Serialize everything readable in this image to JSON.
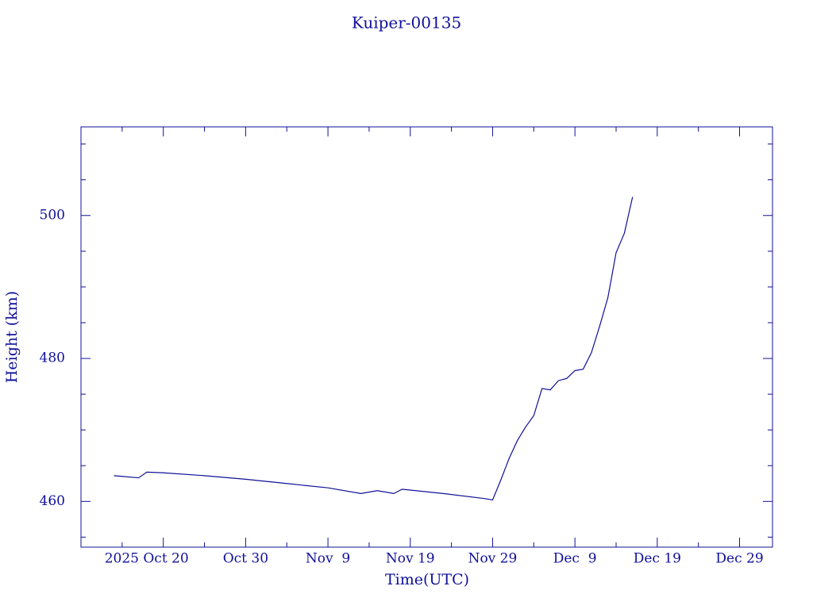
{
  "chart_data": {
    "type": "line",
    "title": "Kuiper-00135",
    "x_label": "Time(UTC)",
    "y_label": "Height (km)",
    "color": "#10109a",
    "x": [
      "2025-10-14",
      "2025-10-15",
      "2025-10-17",
      "2025-10-18",
      "2025-10-20",
      "2025-10-25",
      "2025-10-30",
      "2025-11-04",
      "2025-11-09",
      "2025-11-13",
      "2025-11-15",
      "2025-11-17",
      "2025-11-18",
      "2025-11-23",
      "2025-11-28",
      "2025-11-29",
      "2025-11-30",
      "2025-12-01",
      "2025-12-02",
      "2025-12-03",
      "2025-12-04",
      "2025-12-05",
      "2025-12-06",
      "2025-12-07",
      "2025-12-08",
      "2025-12-09",
      "2025-12-10",
      "2025-12-11",
      "2025-12-12",
      "2025-12-13",
      "2025-12-14",
      "2025-12-15",
      "2025-12-16"
    ],
    "series": [
      {
        "name": "Height",
        "color": "#10109a",
        "values": [
          463.6,
          463.5,
          463.3,
          464.1,
          464.0,
          463.6,
          463.1,
          462.5,
          461.9,
          461.1,
          461.5,
          461.1,
          461.7,
          461.1,
          460.4,
          460.2,
          463.0,
          466.0,
          468.5,
          470.4,
          472.0,
          475.8,
          475.6,
          476.9,
          477.2,
          478.3,
          478.5,
          480.8,
          484.5,
          488.5,
          494.8,
          497.5,
          502.6
        ]
      }
    ],
    "xlim": [
      "2025-10-10",
      "2026-01-02"
    ],
    "xticks": [
      {
        "value": "2025-10-20",
        "label": "2025 Oct 20"
      },
      {
        "value": "2025-10-30",
        "label": "Oct 30"
      },
      {
        "value": "2025-11-09",
        "label": "Nov  9"
      },
      {
        "value": "2025-11-19",
        "label": "Nov 19"
      },
      {
        "value": "2025-11-29",
        "label": "Nov 29"
      },
      {
        "value": "2025-12-09",
        "label": "Dec  9"
      },
      {
        "value": "2025-12-19",
        "label": "Dec 19"
      },
      {
        "value": "2025-12-29",
        "label": "Dec 29"
      }
    ],
    "xminorticks": [
      "2025-10-15",
      "2025-10-25",
      "2025-11-04",
      "2025-11-14",
      "2025-11-24",
      "2025-12-04",
      "2025-12-14",
      "2025-12-24"
    ],
    "ylim": [
      453.6,
      512.4
    ],
    "yticks": [
      460,
      480,
      500
    ],
    "yminorticks": [
      455,
      465,
      470,
      475,
      485,
      490,
      495,
      505,
      510
    ],
    "grid": false
  }
}
